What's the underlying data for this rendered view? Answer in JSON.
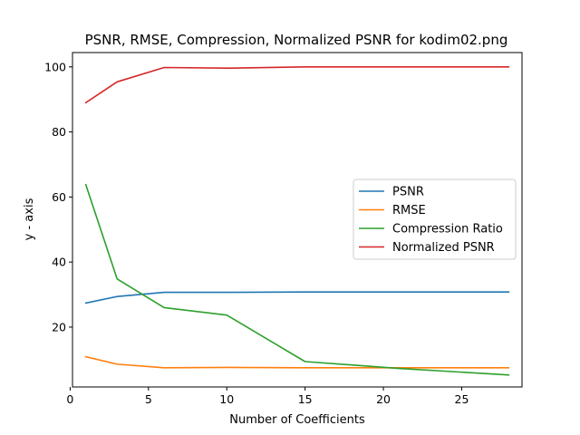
{
  "chart_data": {
    "type": "line",
    "title": "PSNR, RMSE, Compression, Normalized PSNR for kodim02.png",
    "xlabel": "Number of Coefficients",
    "ylabel": "y - axis",
    "xlim": [
      0.15,
      28.85
    ],
    "ylim": [
      1.6,
      104.4
    ],
    "xticks": [
      0,
      5,
      10,
      15,
      20,
      25
    ],
    "yticks": [
      20,
      40,
      60,
      80,
      100
    ],
    "grid": false,
    "legend_position": "center-right",
    "x": [
      1,
      3,
      6,
      10,
      15,
      21,
      28
    ],
    "series": [
      {
        "name": "PSNR",
        "color": "#1f77b4",
        "values": [
          27.4,
          29.4,
          30.7,
          30.7,
          30.8,
          30.8,
          30.8
        ]
      },
      {
        "name": "RMSE",
        "color": "#ff7f0e",
        "values": [
          10.9,
          8.6,
          7.5,
          7.6,
          7.5,
          7.5,
          7.5
        ]
      },
      {
        "name": "Compression Ratio",
        "color": "#2ca02c",
        "values": [
          63.8,
          34.8,
          26.0,
          23.7,
          9.4,
          7.3,
          5.3
        ]
      },
      {
        "name": "Normalized PSNR",
        "color": "#d62728",
        "values": [
          89.0,
          95.4,
          99.8,
          99.6,
          100.0,
          100.0,
          100.0
        ]
      }
    ]
  }
}
